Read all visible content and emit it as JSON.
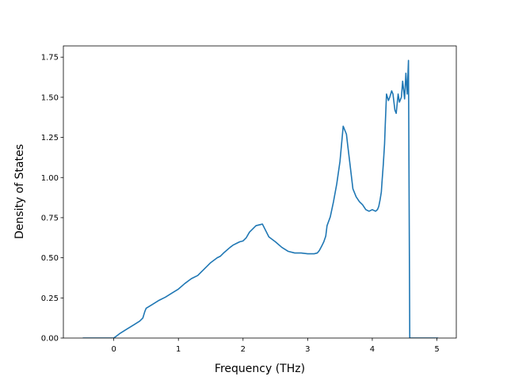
{
  "chart_data": {
    "type": "line",
    "title": "",
    "xlabel": "Frequency (THz)",
    "ylabel": "Density of States",
    "xlim": [
      -0.78,
      5.3
    ],
    "ylim": [
      0.0,
      1.82
    ],
    "xticks": [
      0,
      1,
      2,
      3,
      4,
      5
    ],
    "xtick_labels": [
      "0",
      "1",
      "2",
      "3",
      "4",
      "5"
    ],
    "yticks": [
      0.0,
      0.25,
      0.5,
      0.75,
      1.0,
      1.25,
      1.5,
      1.75
    ],
    "ytick_labels": [
      "0.00",
      "0.25",
      "0.50",
      "0.75",
      "1.00",
      "1.25",
      "1.50",
      "1.75"
    ],
    "grid": false,
    "series": [
      {
        "name": "",
        "color": "#1f77b4",
        "x": [
          -0.48,
          -0.3,
          -0.1,
          0.0,
          0.05,
          0.1,
          0.2,
          0.3,
          0.4,
          0.45,
          0.48,
          0.5,
          0.6,
          0.7,
          0.8,
          0.9,
          1.0,
          1.1,
          1.2,
          1.3,
          1.4,
          1.5,
          1.6,
          1.65,
          1.7,
          1.8,
          1.85,
          1.9,
          1.95,
          2.0,
          2.05,
          2.1,
          2.2,
          2.3,
          2.4,
          2.5,
          2.6,
          2.7,
          2.8,
          2.9,
          3.0,
          3.05,
          3.1,
          3.15,
          3.18,
          3.2,
          3.22,
          3.25,
          3.28,
          3.3,
          3.35,
          3.4,
          3.45,
          3.5,
          3.55,
          3.6,
          3.62,
          3.65,
          3.7,
          3.75,
          3.8,
          3.85,
          3.9,
          3.95,
          4.0,
          4.05,
          4.08,
          4.1,
          4.12,
          4.14,
          4.15,
          4.17,
          4.19,
          4.2,
          4.22,
          4.25,
          4.27,
          4.3,
          4.32,
          4.35,
          4.37,
          4.4,
          4.42,
          4.45,
          4.47,
          4.5,
          4.52,
          4.54,
          4.56,
          4.58,
          4.6,
          4.62,
          4.8,
          5.02
        ],
        "y": [
          0.0,
          0.0,
          0.0,
          0.0,
          0.015,
          0.03,
          0.055,
          0.08,
          0.105,
          0.125,
          0.165,
          0.185,
          0.21,
          0.235,
          0.255,
          0.28,
          0.305,
          0.34,
          0.37,
          0.39,
          0.43,
          0.47,
          0.5,
          0.51,
          0.53,
          0.565,
          0.58,
          0.59,
          0.6,
          0.605,
          0.625,
          0.66,
          0.7,
          0.71,
          0.63,
          0.6,
          0.565,
          0.54,
          0.53,
          0.53,
          0.525,
          0.525,
          0.525,
          0.53,
          0.545,
          0.56,
          0.575,
          0.6,
          0.635,
          0.7,
          0.755,
          0.85,
          0.96,
          1.1,
          1.32,
          1.27,
          1.2,
          1.1,
          0.93,
          0.88,
          0.85,
          0.83,
          0.8,
          0.79,
          0.8,
          0.79,
          0.8,
          0.82,
          0.86,
          0.91,
          0.97,
          1.08,
          1.21,
          1.32,
          1.52,
          1.48,
          1.5,
          1.54,
          1.52,
          1.42,
          1.4,
          1.52,
          1.47,
          1.5,
          1.6,
          1.49,
          1.65,
          1.52,
          1.73,
          0.0,
          0.0,
          0.0,
          0.0,
          0.0
        ]
      }
    ]
  }
}
